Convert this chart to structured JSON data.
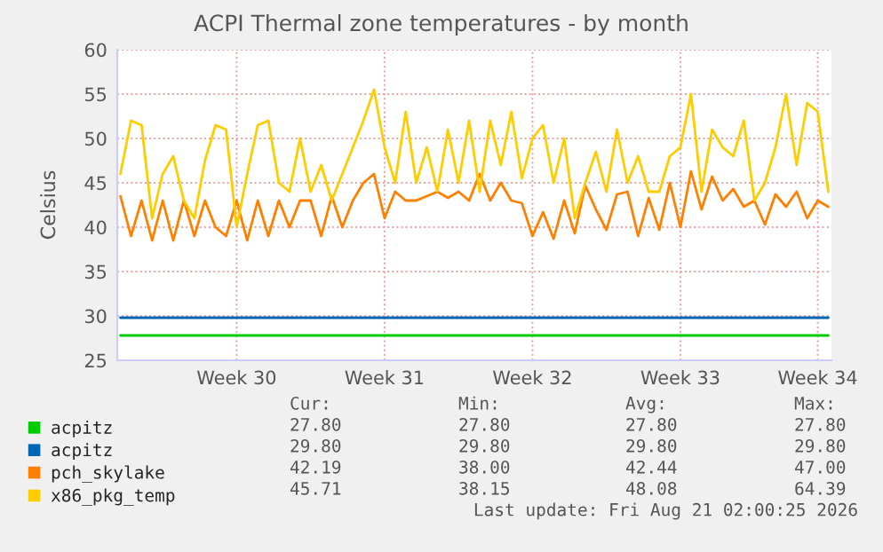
{
  "chart_data": {
    "type": "line",
    "title": "ACPI Thermal zone temperatures - by month",
    "ylabel": "Celsius",
    "categories": [
      null,
      null,
      null,
      null,
      null,
      null,
      null,
      null,
      null,
      null,
      null,
      "Week 30",
      null,
      null,
      null,
      null,
      null,
      null,
      null,
      null,
      null,
      null,
      null,
      null,
      null,
      "Week 31",
      null,
      null,
      null,
      null,
      null,
      null,
      null,
      null,
      null,
      null,
      null,
      null,
      null,
      "Week 32",
      null,
      null,
      null,
      null,
      null,
      null,
      null,
      null,
      null,
      null,
      null,
      null,
      null,
      "Week 33",
      null,
      null,
      null,
      null,
      null,
      null,
      null,
      null,
      null,
      null,
      null,
      null,
      "Week 34",
      null
    ],
    "ylim": [
      25,
      60
    ],
    "yticks": [
      25,
      30,
      35,
      40,
      45,
      50,
      55,
      60
    ],
    "grid": true,
    "legend": "bottom",
    "marker": "none",
    "line_style": "solid",
    "series": [
      {
        "name": "acpitz",
        "color": "#00cc00",
        "values": [
          27.8,
          27.8,
          27.8,
          27.8,
          27.8,
          27.8,
          27.8,
          27.8,
          27.8,
          27.8,
          27.8,
          27.8,
          27.8,
          27.8,
          27.8,
          27.8,
          27.8,
          27.8,
          27.8,
          27.8,
          27.8,
          27.8,
          27.8,
          27.8,
          27.8,
          27.8,
          27.8,
          27.8,
          27.8,
          27.8,
          27.8,
          27.8,
          27.8,
          27.8,
          27.8,
          27.8,
          27.8,
          27.8,
          27.8,
          27.8,
          27.8,
          27.8,
          27.8,
          27.8,
          27.8,
          27.8,
          27.8,
          27.8,
          27.8,
          27.8,
          27.8,
          27.8,
          27.8,
          27.8,
          27.8,
          27.8,
          27.8,
          27.8,
          27.8,
          27.8,
          27.8,
          27.8,
          27.8,
          27.8,
          27.8,
          27.8,
          27.8,
          27.8
        ]
      },
      {
        "name": "acpitz",
        "color": "#0066b3",
        "values": [
          29.8,
          29.8,
          29.8,
          29.8,
          29.8,
          29.8,
          29.8,
          29.8,
          29.8,
          29.8,
          29.8,
          29.8,
          29.8,
          29.8,
          29.8,
          29.8,
          29.8,
          29.8,
          29.8,
          29.8,
          29.8,
          29.8,
          29.8,
          29.8,
          29.8,
          29.8,
          29.8,
          29.8,
          29.8,
          29.8,
          29.8,
          29.8,
          29.8,
          29.8,
          29.8,
          29.8,
          29.8,
          29.8,
          29.8,
          29.8,
          29.8,
          29.8,
          29.8,
          29.8,
          29.8,
          29.8,
          29.8,
          29.8,
          29.8,
          29.8,
          29.8,
          29.8,
          29.8,
          29.8,
          29.8,
          29.8,
          29.8,
          29.8,
          29.8,
          29.8,
          29.8,
          29.8,
          29.8,
          29.8,
          29.8,
          29.8,
          29.8,
          29.8
        ]
      },
      {
        "name": "pch_skylake",
        "color": "#ff8000",
        "values": [
          43.5,
          39,
          43,
          38.5,
          43,
          38.5,
          43,
          39,
          43,
          40,
          39,
          43,
          38.5,
          43,
          39,
          43,
          40,
          43,
          43,
          39,
          43.5,
          40,
          43,
          45,
          46,
          41,
          44,
          43,
          43,
          43.5,
          44,
          43.3,
          44,
          43,
          46,
          43,
          45,
          43,
          42.7,
          39,
          41.7,
          38.7,
          43,
          39.3,
          44.7,
          42,
          39.7,
          43.7,
          44,
          39,
          43.3,
          39.7,
          45,
          40,
          46.3,
          42,
          45.7,
          43,
          44.3,
          42.3,
          43,
          40.3,
          43.7,
          42.3,
          44,
          41,
          43,
          42.3
        ]
      },
      {
        "name": "x86_pkg_temp",
        "color": "#ffcc00",
        "values": [
          46,
          52,
          51.5,
          41,
          46,
          48,
          43,
          41,
          47.5,
          51.5,
          51,
          40,
          46,
          51.5,
          52,
          45,
          44,
          50,
          44,
          47,
          43,
          46,
          49,
          52,
          55.5,
          49,
          45,
          53,
          45,
          49,
          44,
          51,
          45,
          52,
          44,
          52,
          47,
          53,
          45.5,
          50,
          51.5,
          45,
          50,
          41,
          45,
          48.5,
          44,
          51,
          45,
          48,
          44,
          44,
          48,
          49,
          55,
          44,
          51,
          49,
          48,
          52,
          43,
          45,
          49,
          55,
          47,
          54,
          53,
          44
        ]
      }
    ],
    "annotations": [
      "Cur:",
      "Min:",
      "Avg:",
      "Max:",
      "27.80",
      "27.80",
      "27.80",
      "27.80",
      "29.80",
      "29.80",
      "29.80",
      "29.80",
      "42.19",
      "38.00",
      "42.44",
      "47.00",
      "45.71",
      "38.15",
      "48.08",
      "64.39",
      "Last update: Fri Aug 21 02:00:25 2026"
    ]
  }
}
